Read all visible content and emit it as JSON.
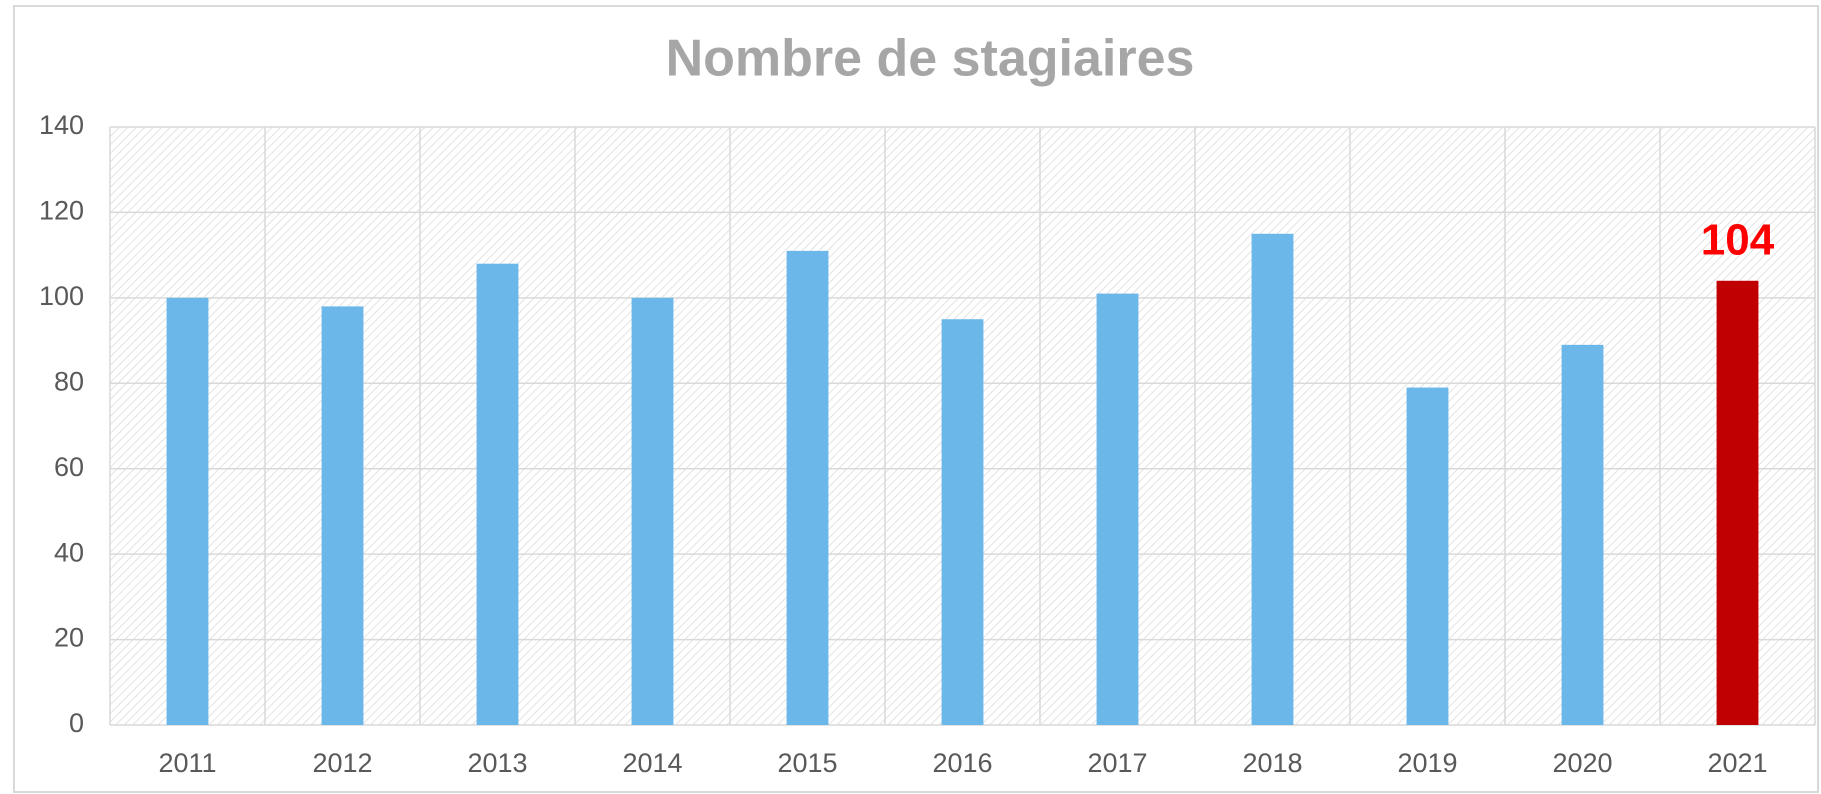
{
  "chart_data": {
    "type": "bar",
    "title": "Nombre de stagiaires",
    "categories": [
      "2011",
      "2012",
      "2013",
      "2014",
      "2015",
      "2016",
      "2017",
      "2018",
      "2019",
      "2020",
      "2021"
    ],
    "values": [
      100,
      98,
      108,
      100,
      111,
      95,
      101,
      115,
      79,
      89,
      104
    ],
    "colors": [
      "#6bb7ea",
      "#6bb7ea",
      "#6bb7ea",
      "#6bb7ea",
      "#6bb7ea",
      "#6bb7ea",
      "#6bb7ea",
      "#6bb7ea",
      "#6bb7ea",
      "#6bb7ea",
      "#c00000"
    ],
    "label_indices": [
      10
    ],
    "label_color": "#ff0000",
    "ylim": [
      0,
      140
    ],
    "yticks": [
      0,
      20,
      40,
      60,
      80,
      100,
      120,
      140
    ],
    "grid": true
  }
}
